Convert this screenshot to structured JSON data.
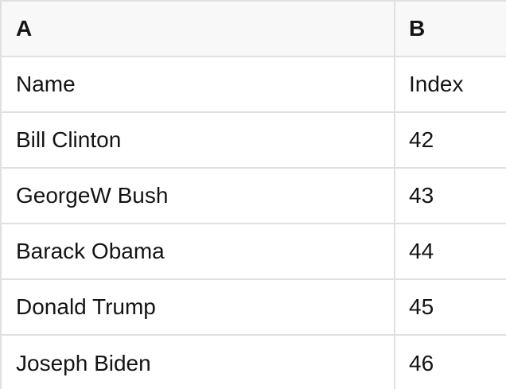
{
  "table": {
    "columns": [
      {
        "key": "A",
        "label": "A"
      },
      {
        "key": "B",
        "label": "B"
      }
    ],
    "rows": [
      {
        "a": "Name",
        "b": "Index"
      },
      {
        "a": "Bill Clinton",
        "b": "42"
      },
      {
        "a": "GeorgeW Bush",
        "b": "43"
      },
      {
        "a": "Barack Obama",
        "b": "44"
      },
      {
        "a": "Donald Trump",
        "b": "45"
      },
      {
        "a": "Joseph Biden",
        "b": "46"
      }
    ]
  },
  "colors": {
    "header_bg": "#f8f8f8",
    "row_bg": "#ffffff",
    "border": "#e0e0e0",
    "text": "#141414"
  }
}
